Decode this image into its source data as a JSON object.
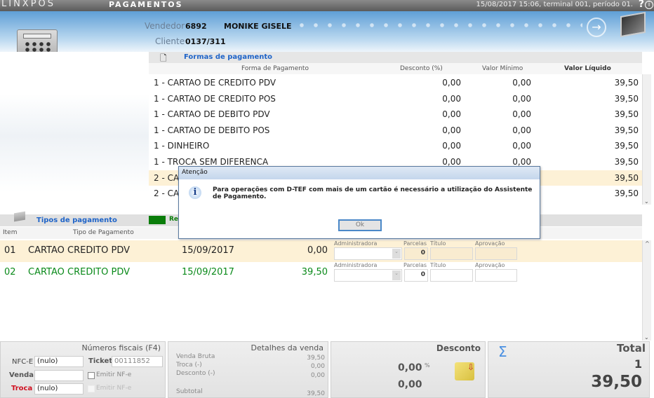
{
  "app": {
    "brand": "LINXPOS",
    "title": "PAGAMENTOS",
    "status": "15/08/2017 15:06, terminal 001, período 01."
  },
  "header": {
    "vendedor_label": "Vendedor",
    "vendedor_code": "6892",
    "vendedor_name": "MONIKE GISELE",
    "cliente_label": "Cliente",
    "cliente_code": "0137/311"
  },
  "formas": {
    "title": "Formas de pagamento",
    "columns": [
      "Forma de Pagamento",
      "Desconto (%)",
      "Valor Mínimo",
      "Valor Líquido"
    ],
    "rows": [
      [
        "1 - CARTAO DE CREDITO PDV",
        "0,00",
        "0,00",
        "39,50"
      ],
      [
        "1 - CARTAO DE CREDITO POS",
        "0,00",
        "0,00",
        "39,50"
      ],
      [
        "1 - CARTAO DE DEBITO PDV",
        "0,00",
        "0,00",
        "39,50"
      ],
      [
        "1 - CARTAO DE DEBITO POS",
        "0,00",
        "0,00",
        "39,50"
      ],
      [
        "1 - DINHEIRO",
        "0,00",
        "0,00",
        "39,50"
      ],
      [
        "1 - TROCA SEM DIFERENCA",
        "0,00",
        "0,00",
        "39,50"
      ],
      [
        "2 - CA",
        "",
        "",
        "39,50"
      ],
      [
        "2 - CA",
        "",
        "",
        "39,50"
      ]
    ]
  },
  "tipos": {
    "title": "Tipos de pagamento",
    "legend": "Re",
    "columns": [
      "Item",
      "Tipo de Pagamento"
    ],
    "field_labels": {
      "adm": "Administradora",
      "parcelas": "Parcelas",
      "titulo": "Título",
      "aprovacao": "Aprovação"
    },
    "rows": [
      {
        "item": "01",
        "tipo": "CARTAO CREDITO PDV",
        "data": "15/09/2017",
        "valor": "0,00",
        "parcelas": "0"
      },
      {
        "item": "02",
        "tipo": "CARTAO CREDITO PDV",
        "data": "15/09/2017",
        "valor": "39,50",
        "parcelas": "0"
      }
    ]
  },
  "fiscais": {
    "title": "Números fiscais (F4)",
    "nfce_label": "NFC-E",
    "nfce_value": "(nulo)",
    "ticket_label": "Ticket",
    "ticket_value": "00111852",
    "venda_label": "Venda",
    "venda_value": "",
    "emitir1": "Emitir NF-e",
    "troca_label": "Troca",
    "troca_value": "(nulo)",
    "emitir2": "Emitir NF-e"
  },
  "detalhes": {
    "title": "Detalhes da venda",
    "venda_bruta_label": "Venda Bruta",
    "venda_bruta": "39,50",
    "troca_label": "Troca (-)",
    "troca": "0,00",
    "desconto_label": "Desconto (-)",
    "desconto": "0,00",
    "subtotal_label": "Subtotal",
    "subtotal": "39,50"
  },
  "desconto": {
    "title": "Desconto",
    "percent": "0,00",
    "percent_sign": "%",
    "value": "0,00"
  },
  "total": {
    "title": "Total",
    "count": "1",
    "value": "39,50"
  },
  "dialog": {
    "title": "Atenção",
    "message": "Para operações com D-TEF com mais de um cartão é necessário a utilização do Assistente de Pagamento.",
    "ok": "Ok"
  }
}
